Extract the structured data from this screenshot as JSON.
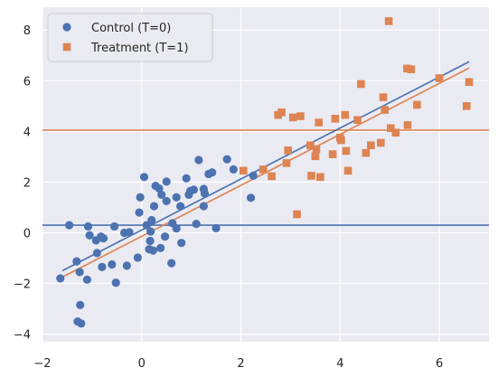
{
  "chart_data": {
    "type": "scatter",
    "title": "",
    "xlabel": "",
    "ylabel": "",
    "xlim": [
      -2,
      7
    ],
    "ylim": [
      -4.3,
      8.9
    ],
    "x_ticks": [
      -2,
      0,
      2,
      4,
      6
    ],
    "y_ticks": [
      -4,
      -2,
      0,
      2,
      4,
      6,
      8
    ],
    "x_tick_labels": [
      "−2",
      "0",
      "2",
      "4",
      "6"
    ],
    "y_tick_labels": [
      "−4",
      "−2",
      "0",
      "2",
      "4",
      "6",
      "8"
    ],
    "grid": true,
    "background": "#eaeaf2",
    "legend_position": "upper-left",
    "series": [
      {
        "name": "Control (T=0)",
        "marker": "circle",
        "color": "#4c72b0",
        "points": [
          [
            -1.64,
            -1.8
          ],
          [
            -1.46,
            0.3
          ],
          [
            -1.31,
            -1.13
          ],
          [
            -1.29,
            -3.5
          ],
          [
            -1.25,
            -1.55
          ],
          [
            -1.24,
            -2.85
          ],
          [
            -1.22,
            -3.58
          ],
          [
            -1.1,
            -1.85
          ],
          [
            -1.08,
            0.25
          ],
          [
            -1.05,
            -0.1
          ],
          [
            -0.92,
            -0.3
          ],
          [
            -0.9,
            -0.8
          ],
          [
            -0.82,
            -0.15
          ],
          [
            -0.8,
            -1.35
          ],
          [
            -0.77,
            -0.22
          ],
          [
            -0.6,
            -1.25
          ],
          [
            -0.55,
            0.25
          ],
          [
            -0.52,
            -1.97
          ],
          [
            -0.35,
            0.0
          ],
          [
            -0.3,
            -1.3
          ],
          [
            -0.25,
            0.02
          ],
          [
            -0.08,
            -0.98
          ],
          [
            -0.05,
            0.8
          ],
          [
            -0.03,
            1.4
          ],
          [
            0.05,
            2.2
          ],
          [
            0.1,
            0.3
          ],
          [
            0.15,
            -0.65
          ],
          [
            0.17,
            -0.32
          ],
          [
            0.18,
            0.05
          ],
          [
            0.2,
            0.5
          ],
          [
            0.23,
            -0.7
          ],
          [
            0.25,
            1.05
          ],
          [
            0.28,
            1.85
          ],
          [
            0.35,
            1.75
          ],
          [
            0.38,
            -0.6
          ],
          [
            0.4,
            1.5
          ],
          [
            0.47,
            -0.15
          ],
          [
            0.5,
            1.25
          ],
          [
            0.5,
            2.02
          ],
          [
            0.6,
            -1.2
          ],
          [
            0.62,
            0.38
          ],
          [
            0.7,
            0.17
          ],
          [
            0.7,
            1.4
          ],
          [
            0.78,
            1.05
          ],
          [
            0.8,
            -0.4
          ],
          [
            0.9,
            2.15
          ],
          [
            0.95,
            1.5
          ],
          [
            0.98,
            1.65
          ],
          [
            1.05,
            1.7
          ],
          [
            1.1,
            0.35
          ],
          [
            1.15,
            2.87
          ],
          [
            1.25,
            1.05
          ],
          [
            1.25,
            1.73
          ],
          [
            1.27,
            1.55
          ],
          [
            1.35,
            2.32
          ],
          [
            1.42,
            2.38
          ],
          [
            1.5,
            0.18
          ],
          [
            1.72,
            2.9
          ],
          [
            1.85,
            2.5
          ],
          [
            2.2,
            1.38
          ],
          [
            2.25,
            2.25
          ]
        ]
      },
      {
        "name": "Treatment (T=1)",
        "marker": "square",
        "color": "#dd8452",
        "points": [
          [
            2.05,
            2.45
          ],
          [
            2.45,
            2.5
          ],
          [
            2.62,
            2.23
          ],
          [
            2.75,
            4.65
          ],
          [
            2.82,
            4.75
          ],
          [
            2.92,
            2.75
          ],
          [
            2.95,
            3.25
          ],
          [
            3.05,
            4.55
          ],
          [
            3.13,
            0.73
          ],
          [
            3.2,
            4.6
          ],
          [
            3.4,
            3.45
          ],
          [
            3.42,
            2.25
          ],
          [
            3.5,
            3.02
          ],
          [
            3.52,
            3.3
          ],
          [
            3.57,
            4.35
          ],
          [
            3.6,
            2.2
          ],
          [
            3.85,
            3.1
          ],
          [
            3.9,
            4.5
          ],
          [
            4.0,
            3.75
          ],
          [
            4.02,
            3.65
          ],
          [
            4.1,
            4.65
          ],
          [
            4.12,
            3.23
          ],
          [
            4.16,
            2.45
          ],
          [
            4.35,
            4.45
          ],
          [
            4.42,
            5.87
          ],
          [
            4.52,
            3.15
          ],
          [
            4.62,
            3.45
          ],
          [
            4.82,
            3.55
          ],
          [
            4.87,
            5.35
          ],
          [
            4.9,
            4.85
          ],
          [
            4.98,
            8.35
          ],
          [
            5.02,
            4.13
          ],
          [
            5.12,
            3.95
          ],
          [
            5.35,
            6.48
          ],
          [
            5.36,
            4.25
          ],
          [
            5.43,
            6.45
          ],
          [
            5.55,
            5.05
          ],
          [
            6.0,
            6.1
          ],
          [
            6.55,
            5.0
          ],
          [
            6.6,
            5.95
          ]
        ]
      }
    ],
    "fit_lines": [
      {
        "color": "#4c72b0",
        "x": [
          -1.6,
          6.6
        ],
        "y": [
          -1.5,
          6.75
        ]
      },
      {
        "color": "#dd8452",
        "x": [
          -1.6,
          6.6
        ],
        "y": [
          -1.75,
          6.5
        ]
      }
    ],
    "hlines": [
      {
        "color": "#4c72b0",
        "y": 0.3
      },
      {
        "color": "#dd8452",
        "y": 4.05
      }
    ]
  }
}
